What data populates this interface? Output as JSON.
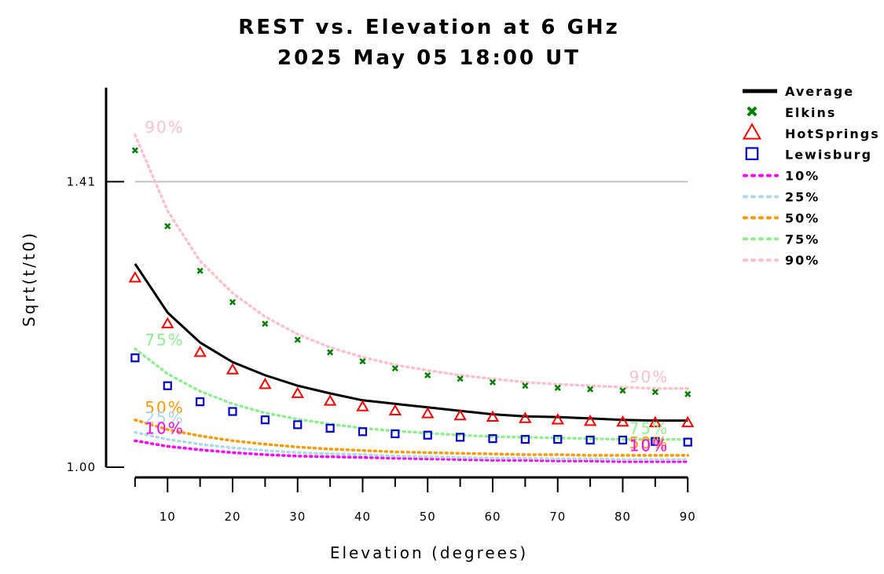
{
  "chart_data": {
    "type": "line",
    "title": "REST vs. Elevation at 6 GHz",
    "subtitle": "2025 May 05 18:00 UT",
    "xlabel": "Elevation (degrees)",
    "ylabel": "Sqrt(t/t0)",
    "xlim": [
      0,
      90
    ],
    "ylim": [
      1.0,
      1.545
    ],
    "x_ticks": [
      10,
      20,
      30,
      40,
      50,
      60,
      70,
      80,
      90
    ],
    "y_ticks": [
      1.0,
      1.41
    ],
    "y_tick_labels": [
      "1.00",
      "1.41"
    ],
    "reference_line": {
      "y": 1.41,
      "color": "#c0c0c0"
    },
    "legend_placement": "right",
    "x": [
      5,
      10,
      15,
      20,
      25,
      30,
      35,
      40,
      45,
      50,
      55,
      60,
      65,
      70,
      75,
      80,
      85,
      90
    ],
    "series": [
      {
        "name": "Average",
        "style": "line",
        "color": "#000000",
        "values": [
          1.292,
          1.222,
          1.179,
          1.151,
          1.132,
          1.117,
          1.106,
          1.096,
          1.091,
          1.086,
          1.081,
          1.076,
          1.073,
          1.072,
          1.07,
          1.068,
          1.067,
          1.067
        ]
      },
      {
        "name": "Elkins",
        "style": "x-marker",
        "color": "#008000",
        "values": [
          1.455,
          1.346,
          1.282,
          1.237,
          1.206,
          1.183,
          1.165,
          1.152,
          1.142,
          1.132,
          1.127,
          1.122,
          1.117,
          1.114,
          1.112,
          1.11,
          1.108,
          1.105
        ]
      },
      {
        "name": "HotSprings",
        "style": "triangle-marker",
        "color": "#ff0000",
        "values": [
          1.272,
          1.206,
          1.165,
          1.14,
          1.119,
          1.106,
          1.095,
          1.087,
          1.081,
          1.077,
          1.074,
          1.072,
          1.07,
          1.068,
          1.066,
          1.065,
          1.064,
          1.064
        ]
      },
      {
        "name": "Lewisburg",
        "style": "square-marker",
        "color": "#0000cc",
        "values": [
          1.157,
          1.117,
          1.094,
          1.08,
          1.068,
          1.061,
          1.056,
          1.051,
          1.048,
          1.046,
          1.043,
          1.041,
          1.04,
          1.04,
          1.039,
          1.039,
          1.037,
          1.036
        ]
      },
      {
        "name": "10%",
        "style": "dotted",
        "color": "#ff00ff",
        "values": [
          1.038,
          1.03,
          1.025,
          1.021,
          1.018,
          1.016,
          1.015,
          1.014,
          1.013,
          1.012,
          1.011,
          1.01,
          1.01,
          1.009,
          1.009,
          1.008,
          1.008,
          1.008
        ]
      },
      {
        "name": "25%",
        "style": "dotted",
        "color": "#add8e6",
        "values": [
          1.05,
          1.04,
          1.033,
          1.028,
          1.024,
          1.021,
          1.019,
          1.018,
          1.016,
          1.015,
          1.014,
          1.013,
          1.013,
          1.012,
          1.012,
          1.011,
          1.011,
          1.011
        ]
      },
      {
        "name": "50%",
        "style": "dotted",
        "color": "#ff9900",
        "values": [
          1.068,
          1.054,
          1.045,
          1.038,
          1.033,
          1.029,
          1.026,
          1.024,
          1.022,
          1.021,
          1.02,
          1.019,
          1.018,
          1.018,
          1.017,
          1.017,
          1.017,
          1.017
        ]
      },
      {
        "name": "75%",
        "style": "dotted",
        "color": "#90ee90",
        "values": [
          1.17,
          1.134,
          1.109,
          1.091,
          1.078,
          1.069,
          1.062,
          1.056,
          1.052,
          1.049,
          1.046,
          1.044,
          1.043,
          1.042,
          1.041,
          1.04,
          1.04,
          1.04
        ]
      },
      {
        "name": "90%",
        "style": "dotted",
        "color": "#ffc0cb",
        "values": [
          1.477,
          1.368,
          1.296,
          1.25,
          1.216,
          1.191,
          1.172,
          1.158,
          1.147,
          1.139,
          1.132,
          1.127,
          1.122,
          1.119,
          1.117,
          1.115,
          1.113,
          1.113
        ]
      }
    ],
    "annotations": [
      {
        "text": "90%",
        "color": "#ffc0cb",
        "x": 6.5,
        "y": 1.48
      },
      {
        "text": "75%",
        "color": "#90ee90",
        "x": 6.5,
        "y": 1.175
      },
      {
        "text": "50%",
        "color": "#ff9900",
        "x": 6.5,
        "y": 1.078
      },
      {
        "text": "25%",
        "color": "#add8e6",
        "x": 6.5,
        "y": 1.063
      },
      {
        "text": "10%",
        "color": "#ff00ff",
        "x": 6.5,
        "y": 1.048
      },
      {
        "text": "90%",
        "color": "#ffc0cb",
        "x": 81,
        "y": 1.122
      },
      {
        "text": "75%",
        "color": "#90ee90",
        "x": 81,
        "y": 1.048
      },
      {
        "text": "50%",
        "color": "#ff9900",
        "x": 81,
        "y": 1.027
      },
      {
        "text": "10%",
        "color": "#ff00ff",
        "x": 81,
        "y": 1.023
      }
    ]
  }
}
